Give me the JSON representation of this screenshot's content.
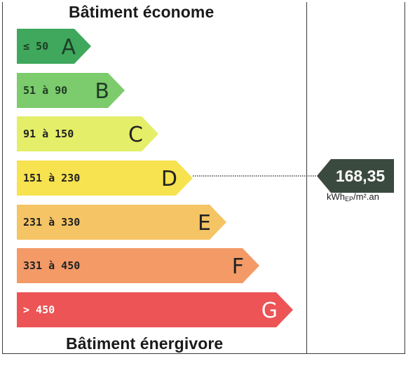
{
  "header": {
    "top_label": "Bâtiment économe",
    "bottom_label": "Bâtiment énergivore"
  },
  "chart_data": {
    "type": "bar",
    "classes": [
      {
        "letter": "A",
        "range": "≤ 50",
        "color": "#3fa85c",
        "text_color": "#1f3d26"
      },
      {
        "letter": "B",
        "range": "51 à 90",
        "color": "#7ccb6c",
        "text_color": "#1f3d26"
      },
      {
        "letter": "C",
        "range": "91 à 150",
        "color": "#e4ee68",
        "text_color": "#222222"
      },
      {
        "letter": "D",
        "range": "151 à 230",
        "color": "#f7e24f",
        "text_color": "#222222"
      },
      {
        "letter": "E",
        "range": "231 à 330",
        "color": "#f5c465",
        "text_color": "#222222"
      },
      {
        "letter": "F",
        "range": "331 à 450",
        "color": "#f39a67",
        "text_color": "#222222"
      },
      {
        "letter": "G",
        "range": "> 450",
        "color": "#ec5455",
        "text_color": "#ffffff"
      }
    ],
    "value": "168,35",
    "value_class": "D",
    "unit": {
      "main": "kWh",
      "sub": "EP",
      "rest": "/m².an"
    },
    "marker_color": "#3b4a3e"
  }
}
